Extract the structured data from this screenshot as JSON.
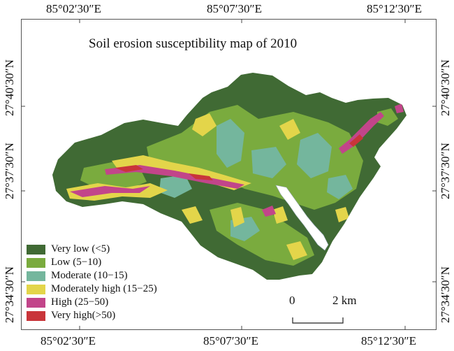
{
  "map": {
    "title": "Soil erosion susceptibility map of 2010",
    "longitude_labels": [
      "85°02′30″E",
      "85°07′30″E",
      "85°12′30″E"
    ],
    "latitude_labels": [
      "27°40′30″N",
      "27°37′30″N",
      "27°34′30″N"
    ],
    "legend": [
      {
        "label": "Very low (<5)",
        "color": "#406a34"
      },
      {
        "label": "Low (5−10)",
        "color": "#7aab3e"
      },
      {
        "label": "Moderate (10−15)",
        "color": "#74b69d"
      },
      {
        "label": "Moderately high (15−25)",
        "color": "#e3d54a"
      },
      {
        "label": "High (25−50)",
        "color": "#c2458a"
      },
      {
        "label": "Very high(>50)",
        "color": "#c9353a"
      }
    ],
    "scale_bar": {
      "start": "0",
      "end": "2 km"
    },
    "water_color": "#ffffff"
  }
}
